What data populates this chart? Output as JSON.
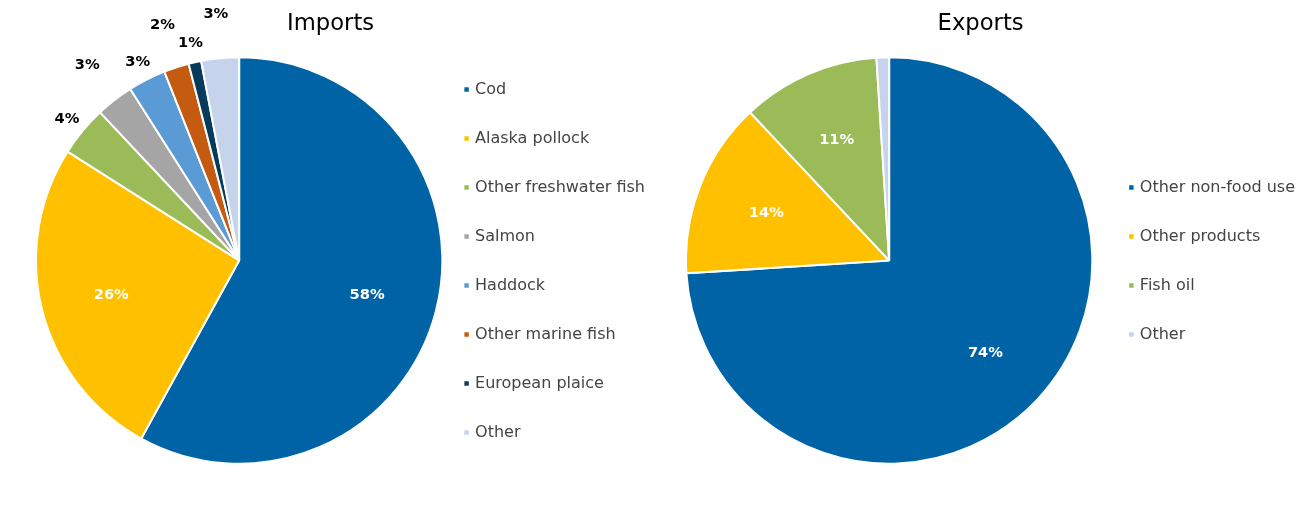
{
  "chart_data": [
    {
      "type": "pie",
      "title": "Imports",
      "categories": [
        "Cod",
        "Alaska pollock",
        "Other freshwater fish",
        "Salmon",
        "Haddock",
        "Other marine fish",
        "European plaice",
        "Other"
      ],
      "values": [
        58,
        26,
        4,
        3,
        3,
        2,
        1,
        3
      ],
      "colors": [
        "#0063a5",
        "#ffc000",
        "#9bbb59",
        "#a5a5a5",
        "#5b9bd5",
        "#c55a11",
        "#073b5c",
        "#c5d3ec"
      ],
      "value_labels": [
        "58%",
        "26%",
        "4%",
        "3%",
        "3%",
        "2%",
        "1%",
        "3%"
      ],
      "legend": "right"
    },
    {
      "type": "pie",
      "title": "Exports",
      "categories": [
        "Other non-food use",
        "Other products",
        "Fish oil",
        "Other"
      ],
      "values": [
        74,
        14,
        11,
        1
      ],
      "colors": [
        "#0063a5",
        "#ffc000",
        "#9bbb59",
        "#c5d3ec"
      ],
      "value_labels": [
        "74%",
        "14%",
        "11%",
        null
      ],
      "legend": "right"
    }
  ]
}
